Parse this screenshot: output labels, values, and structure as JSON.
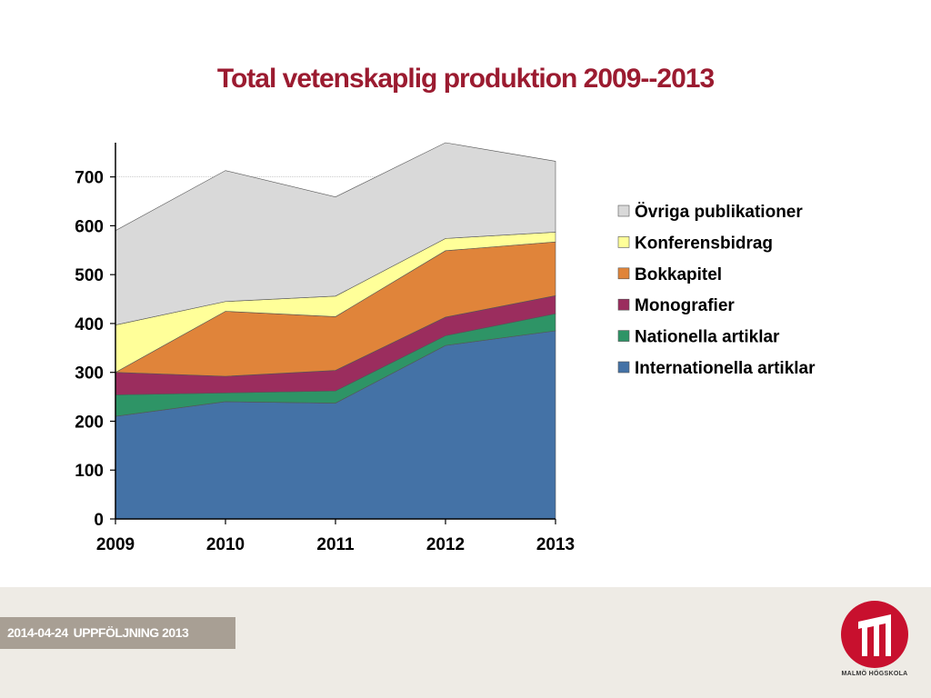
{
  "slide": {
    "title": "Total vetenskaplig produktion 2009--2013"
  },
  "footer": {
    "date": "2014-04-24",
    "label": "UPPFÖLJNING 2013",
    "logo_text": "MALMÖ HÖGSKOLA"
  },
  "chart_data": {
    "type": "area",
    "stacked": true,
    "x": [
      "2009",
      "2010",
      "2011",
      "2012",
      "2013"
    ],
    "ylim": [
      0,
      770
    ],
    "yticks": [
      0,
      100,
      200,
      300,
      400,
      500,
      600,
      700
    ],
    "grid": "y-major-700-only",
    "legend_position": "right",
    "series": [
      {
        "name": "Internationella artiklar",
        "color": "#4472a6",
        "values": [
          210,
          240,
          237,
          355,
          385
        ]
      },
      {
        "name": "Nationella artiklar",
        "color": "#2e9466",
        "values": [
          44,
          18,
          25,
          20,
          35
        ]
      },
      {
        "name": "Monografier",
        "color": "#9b2d5e",
        "values": [
          46,
          34,
          42,
          38,
          37
        ]
      },
      {
        "name": "Bokkapitel",
        "color": "#e0843a",
        "values": [
          0,
          133,
          110,
          136,
          110
        ]
      },
      {
        "name": "Konferensbidrag",
        "color": "#ffff99",
        "values": [
          97,
          20,
          42,
          25,
          20
        ]
      },
      {
        "name": "Övriga publikationer",
        "color": "#d9d9d9",
        "values": [
          193,
          268,
          203,
          196,
          145
        ]
      }
    ]
  }
}
